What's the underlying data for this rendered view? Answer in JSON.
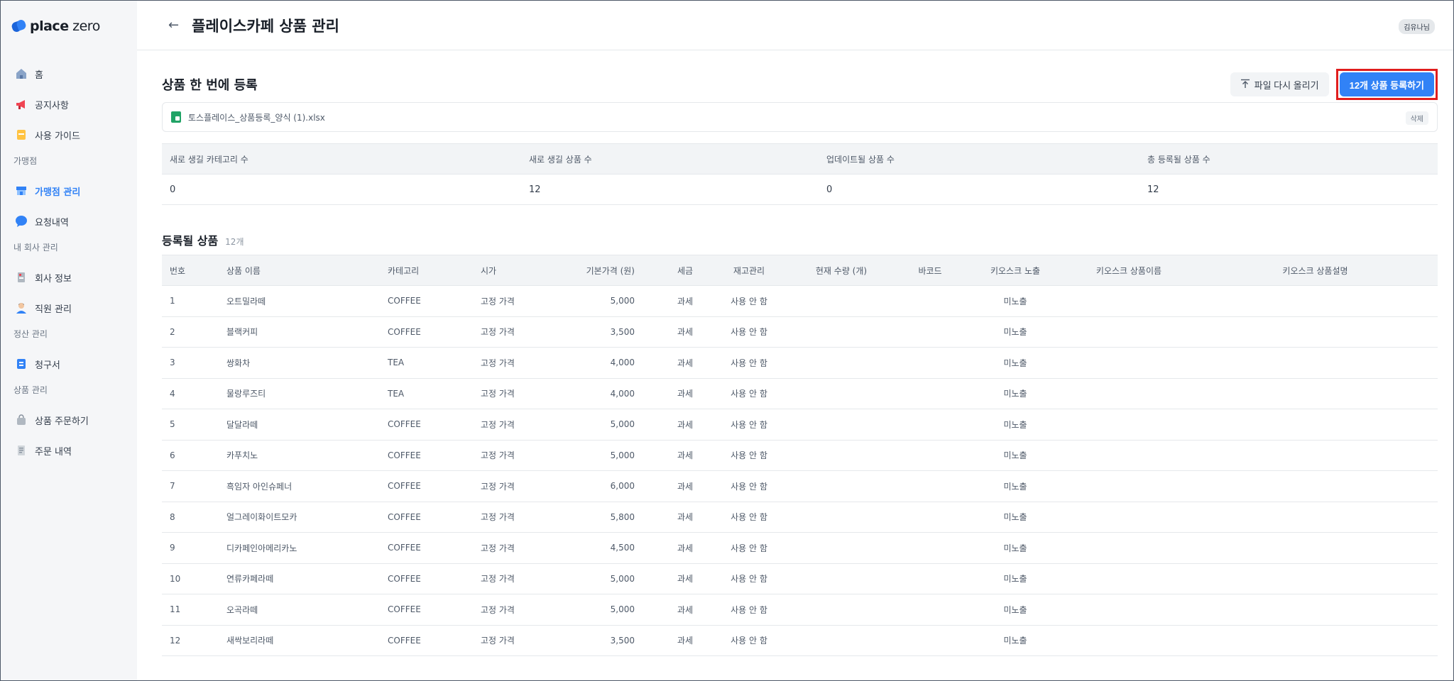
{
  "brand": {
    "name_bold": "place",
    "name_rest": " zero"
  },
  "sidebar": {
    "top_items": [
      {
        "label": "홈",
        "icon": "home-icon"
      },
      {
        "label": "공지사항",
        "icon": "megaphone-icon"
      },
      {
        "label": "사용 가이드",
        "icon": "guide-icon"
      }
    ],
    "sections": [
      {
        "title": "가맹점",
        "items": [
          {
            "label": "가맹점 관리",
            "icon": "store-icon",
            "active": true
          },
          {
            "label": "요청내역",
            "icon": "chat-icon"
          }
        ]
      },
      {
        "title": "내 회사 관리",
        "items": [
          {
            "label": "회사 정보",
            "icon": "building-icon"
          },
          {
            "label": "직원 관리",
            "icon": "person-icon"
          }
        ]
      },
      {
        "title": "정산 관리",
        "items": [
          {
            "label": "청구서",
            "icon": "invoice-icon"
          }
        ]
      },
      {
        "title": "상품 관리",
        "items": [
          {
            "label": "상품 주문하기",
            "icon": "bag-icon"
          },
          {
            "label": "주문 내역",
            "icon": "receipt-icon"
          }
        ]
      }
    ]
  },
  "header": {
    "title": "플레이스카페 상품 관리",
    "user": "김유나님"
  },
  "upload": {
    "title": "상품 한 번에 등록",
    "reupload_label": "파일 다시 올리기",
    "register_label": "12개 상품 등록하기",
    "file_name": "토스플레이스_상품등록_양식 (1).xlsx",
    "delete_label": "삭제"
  },
  "summary": {
    "headers": [
      "새로 생길 카테고리 수",
      "새로 생길 상품 수",
      "업데이트될 상품 수",
      "총 등록될 상품 수"
    ],
    "values": [
      "0",
      "12",
      "0",
      "12"
    ]
  },
  "products": {
    "title": "등록될 상품",
    "count": "12개",
    "headers": [
      "번호",
      "상품 이름",
      "카테고리",
      "시가",
      "기본가격 (원)",
      "세금",
      "재고관리",
      "현재 수량 (개)",
      "바코드",
      "키오스크 노출",
      "키오스크 상품이름",
      "키오스크 상품설명"
    ],
    "rows": [
      [
        "1",
        "오트밀라떼",
        "COFFEE",
        "고정 가격",
        "5,000",
        "과세",
        "사용 안 함",
        "",
        "",
        "미노출",
        "",
        ""
      ],
      [
        "2",
        "블랙커피",
        "COFFEE",
        "고정 가격",
        "3,500",
        "과세",
        "사용 안 함",
        "",
        "",
        "미노출",
        "",
        ""
      ],
      [
        "3",
        "쌍화차",
        "TEA",
        "고정 가격",
        "4,000",
        "과세",
        "사용 안 함",
        "",
        "",
        "미노출",
        "",
        ""
      ],
      [
        "4",
        "물랑루즈티",
        "TEA",
        "고정 가격",
        "4,000",
        "과세",
        "사용 안 함",
        "",
        "",
        "미노출",
        "",
        ""
      ],
      [
        "5",
        "달달라떼",
        "COFFEE",
        "고정 가격",
        "5,000",
        "과세",
        "사용 안 함",
        "",
        "",
        "미노출",
        "",
        ""
      ],
      [
        "6",
        "카푸치노",
        "COFFEE",
        "고정 가격",
        "5,000",
        "과세",
        "사용 안 함",
        "",
        "",
        "미노출",
        "",
        ""
      ],
      [
        "7",
        "흑임자 아인슈페너",
        "COFFEE",
        "고정 가격",
        "6,000",
        "과세",
        "사용 안 함",
        "",
        "",
        "미노출",
        "",
        ""
      ],
      [
        "8",
        "얼그레이화이트모카",
        "COFFEE",
        "고정 가격",
        "5,800",
        "과세",
        "사용 안 함",
        "",
        "",
        "미노출",
        "",
        ""
      ],
      [
        "9",
        "디카페인아메리카노",
        "COFFEE",
        "고정 가격",
        "4,500",
        "과세",
        "사용 안 함",
        "",
        "",
        "미노출",
        "",
        ""
      ],
      [
        "10",
        "연류카페라떼",
        "COFFEE",
        "고정 가격",
        "5,000",
        "과세",
        "사용 안 함",
        "",
        "",
        "미노출",
        "",
        ""
      ],
      [
        "11",
        "오곡라떼",
        "COFFEE",
        "고정 가격",
        "5,000",
        "과세",
        "사용 안 함",
        "",
        "",
        "미노출",
        "",
        ""
      ],
      [
        "12",
        "새싹보리라떼",
        "COFFEE",
        "고정 가격",
        "3,500",
        "과세",
        "사용 안 함",
        "",
        "",
        "미노출",
        "",
        ""
      ]
    ]
  },
  "colors": {
    "accent": "#3182f6",
    "highlight": "#e01e1e",
    "sidebar_bg": "#f5f6f8"
  }
}
